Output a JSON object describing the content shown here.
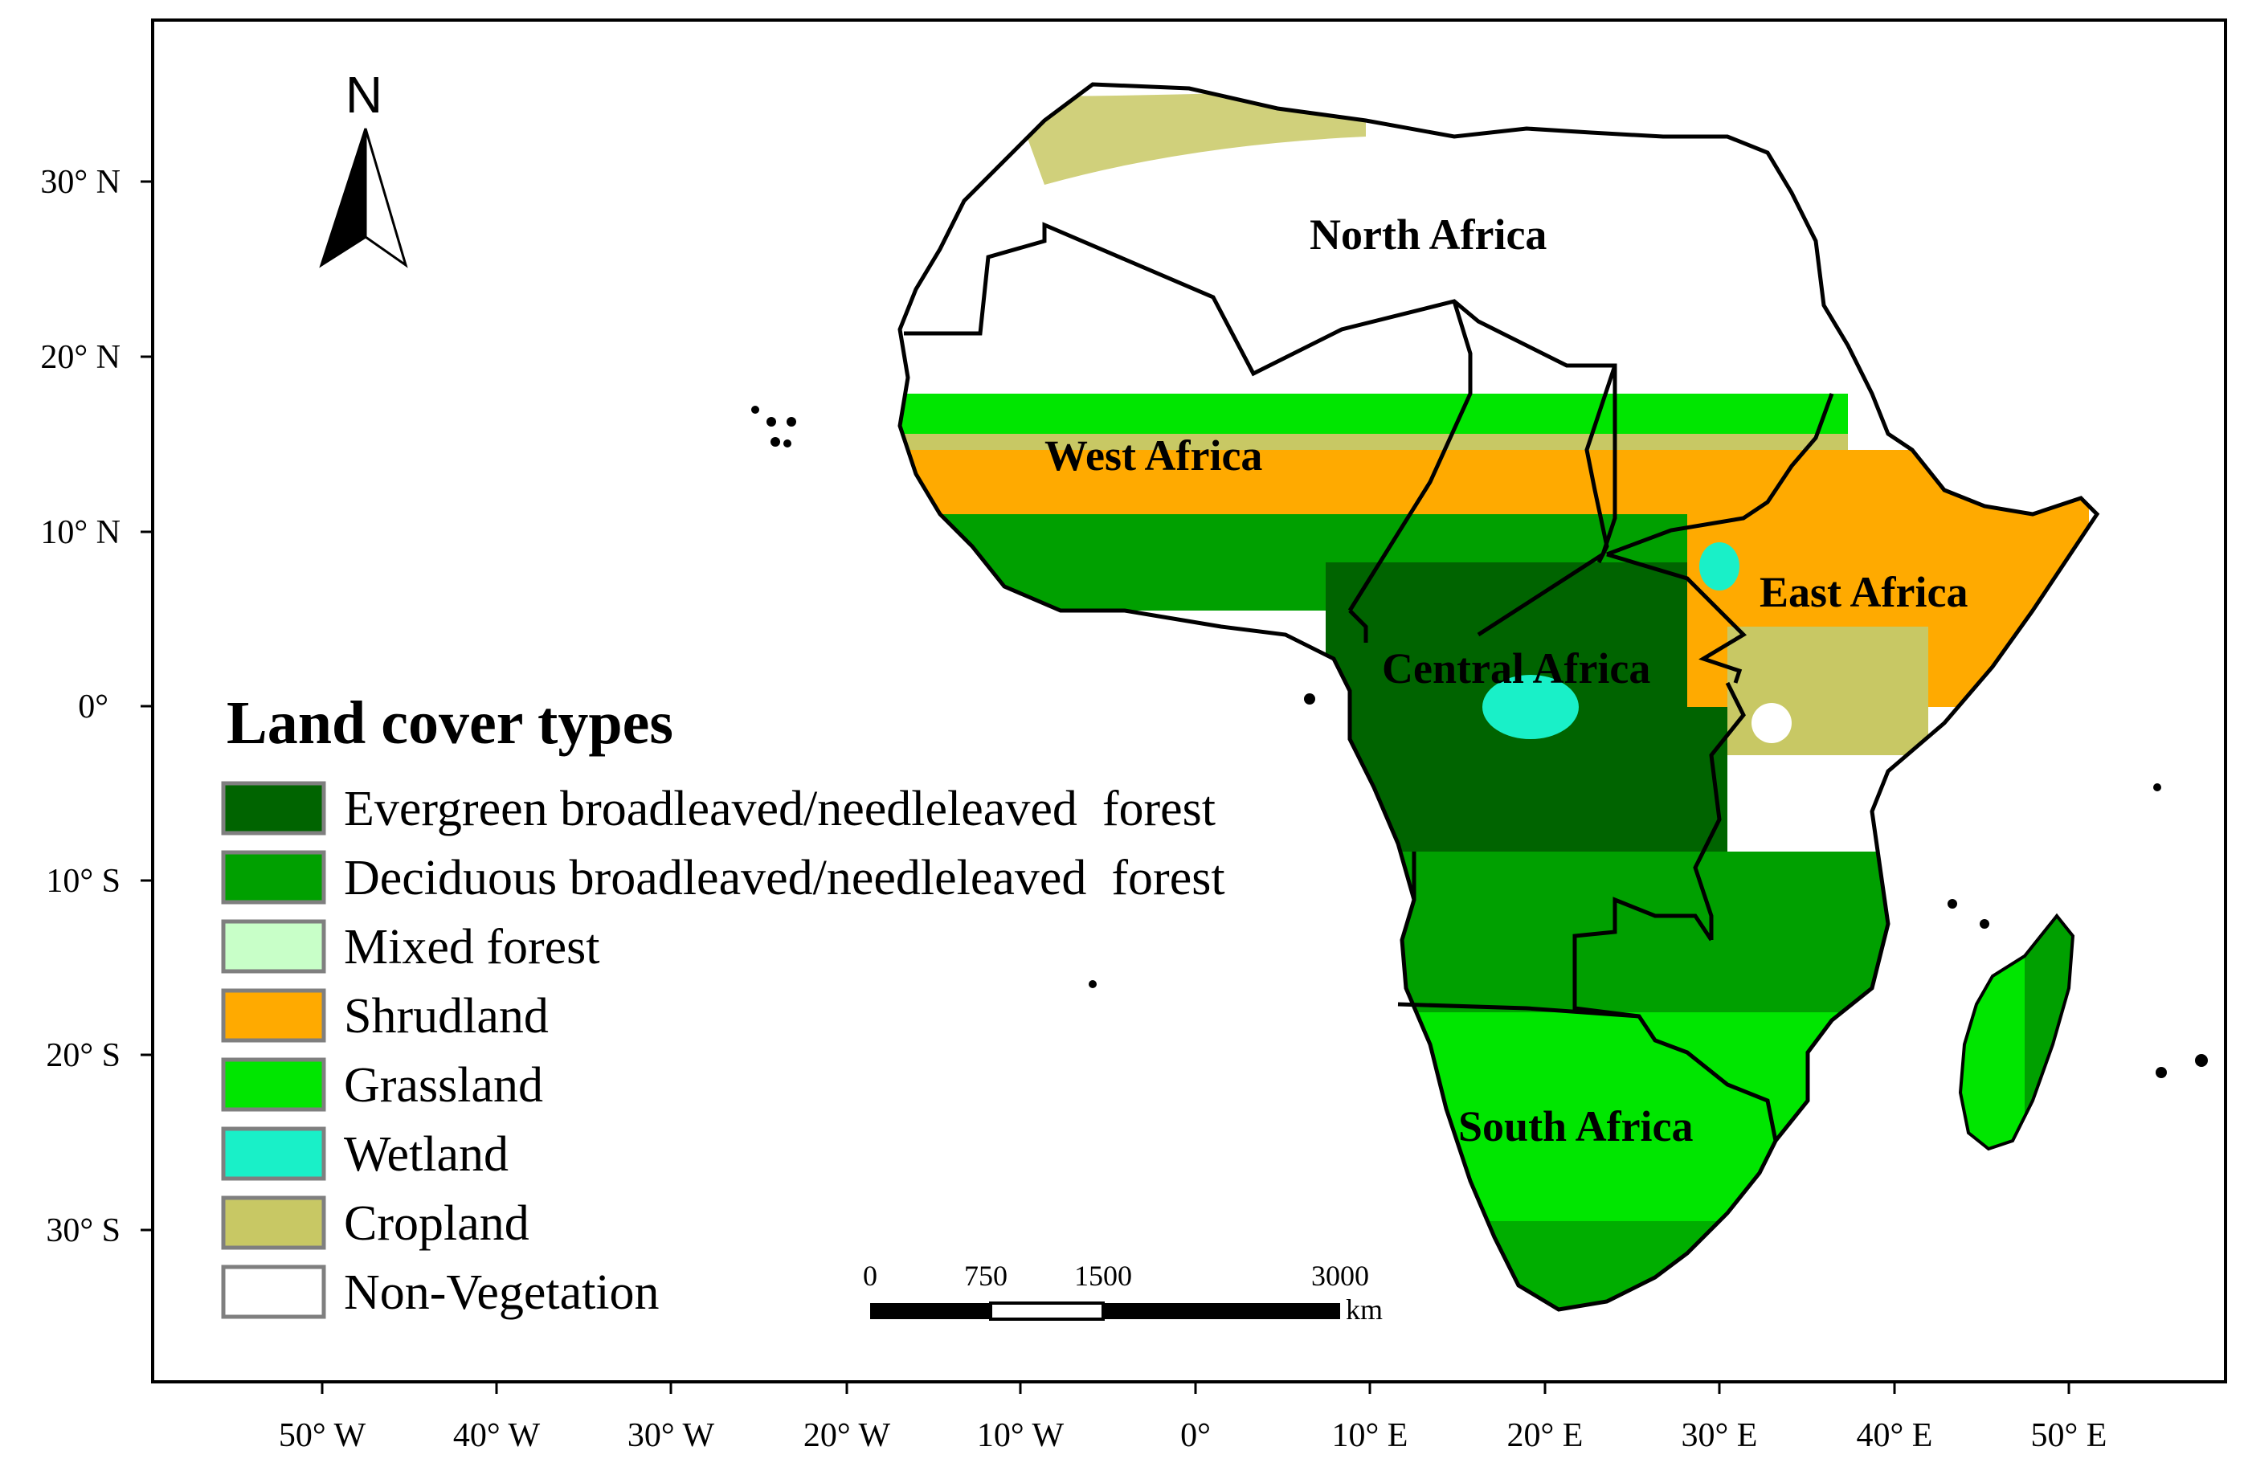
{
  "map": {
    "x_ticks": [
      "50° W",
      "40° W",
      "30° W",
      "20° W",
      "10° W",
      "0°",
      "10° E",
      "20° E",
      "30° E",
      "40° E",
      "50° E"
    ],
    "y_ticks": [
      "30° N",
      "20° N",
      "10° N",
      "0°",
      "10° S",
      "20° S",
      "30° S"
    ],
    "regions": [
      "North Africa",
      "West Africa",
      "East Africa",
      "Central Africa",
      "South Africa"
    ],
    "north_arrow": {
      "label": "N",
      "icon": "north-arrow-icon"
    },
    "scale_bar": {
      "ticks": [
        "0",
        "750",
        "1500",
        "3000"
      ],
      "unit": "km"
    }
  },
  "legend": {
    "title": "Land cover types",
    "items": [
      {
        "label": "Evergreen broadleaved/needleleaved  forest",
        "color": "#006400"
      },
      {
        "label": "Deciduous broadleaved/needleleaved  forest",
        "color": "#00a000"
      },
      {
        "label": "Mixed forest",
        "color": "#c8ffc8"
      },
      {
        "label": "Shrudland",
        "color": "#ffaa00"
      },
      {
        "label": "Grassland",
        "color": "#00e600"
      },
      {
        "label": "Wetland",
        "color": "#19f0c8"
      },
      {
        "label": "Cropland",
        "color": "#c8c864"
      },
      {
        "label": "Non-Vegetation",
        "color": "#ffffff"
      }
    ]
  }
}
